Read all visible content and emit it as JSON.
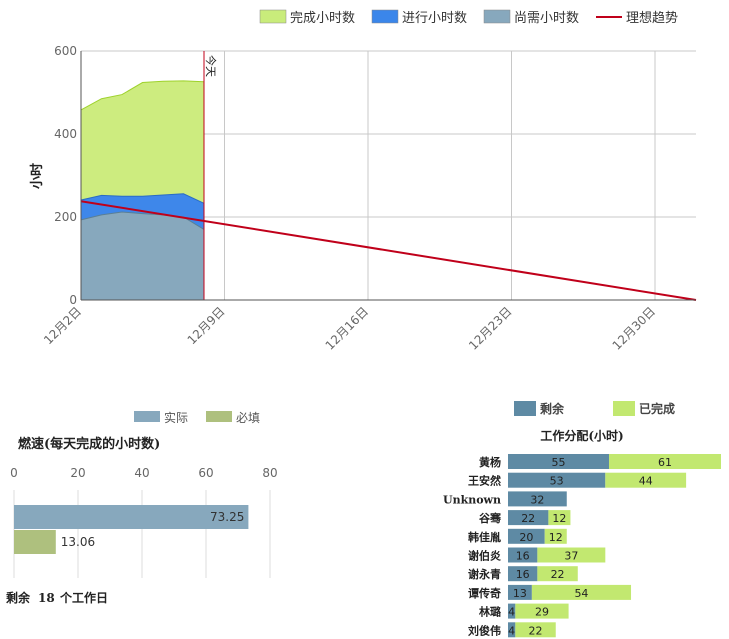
{
  "chart_data": [
    {
      "type": "area",
      "ylabel": "小时",
      "ylim": [
        0,
        600
      ],
      "x_ticks": [
        "12月2日",
        "12月9日",
        "12月16日",
        "12月23日",
        "12月30日"
      ],
      "today_label": "今天",
      "legend": [
        {
          "name": "完成小时数",
          "color": "#c9ec7b"
        },
        {
          "name": "进行小时数",
          "color": "#3b86ea"
        },
        {
          "name": "尚需小时数",
          "color": "#87a8bd"
        },
        {
          "name": "理想趋势",
          "color": "#c0001a"
        }
      ],
      "x": [
        "12月2日",
        "12月3日",
        "12月4日",
        "12月5日",
        "12月6日",
        "12月7日",
        "12月8日"
      ],
      "series": [
        {
          "name": "尚需小时数",
          "values": [
            193,
            205,
            212,
            208,
            205,
            200,
            170
          ]
        },
        {
          "name": "进行小时数",
          "values": [
            48,
            47,
            38,
            42,
            48,
            56,
            63
          ]
        },
        {
          "name": "完成小时数",
          "values": [
            217,
            233,
            245,
            274,
            274,
            272,
            293
          ]
        }
      ],
      "ideal": {
        "start": [
          "12月2日",
          238
        ],
        "end": [
          "1月1日",
          0
        ]
      }
    },
    {
      "type": "bar",
      "title": "燃速(每天完成的小时数)",
      "legend": [
        {
          "name": "实际",
          "color": "#87a8bd"
        },
        {
          "name": "必填",
          "color": "#aec07e"
        }
      ],
      "xlim": [
        0,
        80
      ],
      "ticks": [
        "0",
        "20",
        "40",
        "60",
        "80"
      ],
      "values": [
        73.25,
        13.06
      ],
      "labels": [
        "73.25",
        "13.06"
      ],
      "footer": {
        "prefix": "剩余",
        "value": "18",
        "suffix": "个工作日"
      }
    },
    {
      "type": "bar",
      "title": "工作分配(小时)",
      "legend": [
        {
          "name": "剩余",
          "color": "#5e8aa4"
        },
        {
          "name": "已完成",
          "color": "#c2e870"
        }
      ],
      "categories": [
        "黄杨",
        "王安然",
        "Unknown",
        "谷骞",
        "韩佳胤",
        "谢伯炎",
        "谢永青",
        "谭传奇",
        "林璐",
        "刘俊伟"
      ],
      "series": [
        {
          "name": "剩余",
          "values": [
            55,
            53,
            32,
            22,
            20,
            16,
            16,
            13,
            4,
            4
          ]
        },
        {
          "name": "已完成",
          "values": [
            61,
            44,
            null,
            12,
            12,
            37,
            22,
            54,
            29,
            22
          ]
        }
      ]
    }
  ]
}
